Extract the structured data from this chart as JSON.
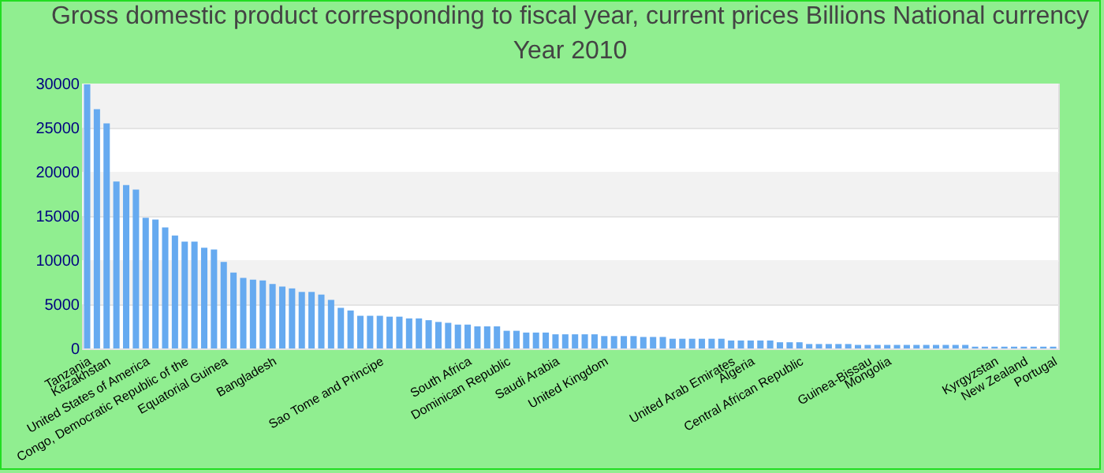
{
  "chart_data": {
    "type": "bar",
    "title": "Gross domestic product corresponding to fiscal year, current prices Billions National currency",
    "subtitle": "Year 2010",
    "categories": [
      "Tanzania",
      null,
      "Kazakhstan",
      null,
      null,
      null,
      "United States of America",
      null,
      null,
      null,
      "Congo, Democratic Republic of the",
      null,
      null,
      null,
      "Equatorial Guinea",
      null,
      null,
      null,
      null,
      "Bangladesh",
      null,
      null,
      null,
      null,
      null,
      null,
      null,
      null,
      null,
      null,
      "Sao Tome and Principe",
      null,
      null,
      null,
      null,
      null,
      null,
      null,
      null,
      "South Africa",
      null,
      null,
      null,
      "Dominican Republic",
      null,
      null,
      null,
      null,
      "Saudi Arabia",
      null,
      null,
      null,
      null,
      "United Kingdom",
      null,
      null,
      null,
      null,
      null,
      null,
      null,
      null,
      null,
      null,
      null,
      null,
      "United Arab Emirates",
      null,
      "Algeria",
      null,
      null,
      null,
      null,
      "Central African Republic",
      null,
      null,
      null,
      null,
      null,
      null,
      "Guinea-Bissau",
      null,
      "Mongolia",
      null,
      null,
      null,
      null,
      null,
      null,
      null,
      null,
      null,
      null,
      "Kyrgyzstan",
      null,
      null,
      "New Zealand",
      null,
      null,
      "Portugal"
    ],
    "values": [
      29900,
      27100,
      25500,
      18900,
      18500,
      18000,
      14800,
      14600,
      13700,
      12800,
      12100,
      12100,
      11400,
      11200,
      9800,
      8600,
      8000,
      7800,
      7700,
      7300,
      7000,
      6800,
      6400,
      6400,
      6100,
      5500,
      4600,
      4300,
      3700,
      3700,
      3700,
      3600,
      3600,
      3400,
      3400,
      3200,
      3000,
      2900,
      2700,
      2700,
      2500,
      2500,
      2500,
      2000,
      2000,
      1800,
      1800,
      1800,
      1600,
      1600,
      1600,
      1600,
      1600,
      1400,
      1400,
      1400,
      1400,
      1300,
      1300,
      1300,
      1100,
      1100,
      1100,
      1100,
      1100,
      1100,
      900,
      900,
      900,
      900,
      900,
      700,
      700,
      700,
      500,
      500,
      500,
      500,
      500,
      400,
      400,
      400,
      400,
      400,
      400,
      400,
      400,
      400,
      400,
      400,
      400,
      200,
      200,
      200,
      200,
      200,
      200,
      200,
      200,
      200
    ],
    "color": "#66aaf0",
    "ylim": [
      0,
      30000
    ],
    "yticks": [
      0,
      5000,
      10000,
      15000,
      20000,
      25000,
      30000
    ],
    "grid": true
  }
}
